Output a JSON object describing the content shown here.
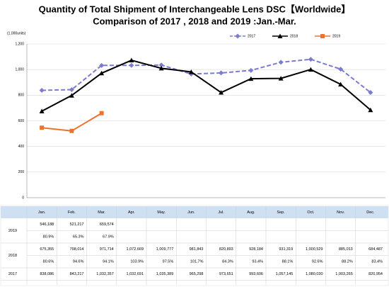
{
  "chart_data": {
    "type": "line",
    "title": "Quantity of Total Shipment of Interchangeable Lens DSC【Worldwide】",
    "subtitle": "Comparison of 2017 , 2018 and 2019 :Jan.-Mar.",
    "y_axis_label": "(1,000units)",
    "categories": [
      "Jan.",
      "Feb.",
      "Mar.",
      "Apr.",
      "May.",
      "Jun.",
      "Jul.",
      "Aug.",
      "Sep.",
      "Oct.",
      "Nov.",
      "Dec."
    ],
    "ylim": [
      0,
      1200
    ],
    "yticks": [
      0,
      200,
      400,
      600,
      800,
      {
        "value": 1000,
        "label": "1,000"
      },
      {
        "value": 1200,
        "label": "1,200"
      }
    ],
    "grid": true,
    "legend": "top-right",
    "series": [
      {
        "name": "2017",
        "color": "#7b7bd0",
        "dashed": true,
        "marker": "diamond",
        "values": [
          838.086,
          843.217,
          1032.357,
          1032.691,
          1035.389,
          965.298,
          973.651,
          993.606,
          1057.145,
          1080.03,
          1003.265,
          820.954
        ],
        "value_labels": [
          "838,086",
          "843,217",
          "1,032,357",
          "1,032,691",
          "1,035,389",
          "965,298",
          "973,651",
          "993,606",
          "1,057,145",
          "1,080,030",
          "1,003,265",
          "820,954"
        ]
      },
      {
        "name": "2018",
        "color": "#000000",
        "dashed": false,
        "marker": "triangle",
        "values": [
          675.355,
          798.014,
          971.714,
          1072.669,
          1009.777,
          981.843,
          820.893,
          928.184,
          931.319,
          1000.529,
          885.013,
          684.487
        ],
        "value_labels": [
          "675,355",
          "798,014",
          "971,714",
          "1,072,669",
          "1,009,777",
          "981,843",
          "820,893",
          "928,184",
          "931,319",
          "1,000,529",
          "885,013",
          "684,487"
        ],
        "yoy": [
          80.6,
          94.6,
          94.1,
          103.9,
          97.5,
          101.7,
          84.3,
          93.4,
          88.1,
          92.6,
          88.2,
          83.4
        ],
        "yoy_labels": [
          "80.6%",
          "94.6%",
          "94.1%",
          "103.9%",
          "97.5%",
          "101.7%",
          "84.3%",
          "93.4%",
          "88.1%",
          "92.6%",
          "88.2%",
          "83.4%"
        ]
      },
      {
        "name": "2019",
        "color": "#f07030",
        "dashed": false,
        "marker": "square",
        "values": [
          546.188,
          521.217,
          659.574,
          null,
          null,
          null,
          null,
          null,
          null,
          null,
          null,
          null
        ],
        "value_labels": [
          "546,188",
          "521,217",
          "659,574",
          null,
          null,
          null,
          null,
          null,
          null,
          null,
          null,
          null
        ],
        "yoy": [
          80.9,
          65.3,
          67.9,
          null,
          null,
          null,
          null,
          null,
          null,
          null,
          null,
          null
        ],
        "yoy_labels": [
          "80.9%",
          "65.3%",
          "67.9%",
          null,
          null,
          null,
          null,
          null,
          null,
          null,
          null,
          null
        ]
      }
    ]
  }
}
